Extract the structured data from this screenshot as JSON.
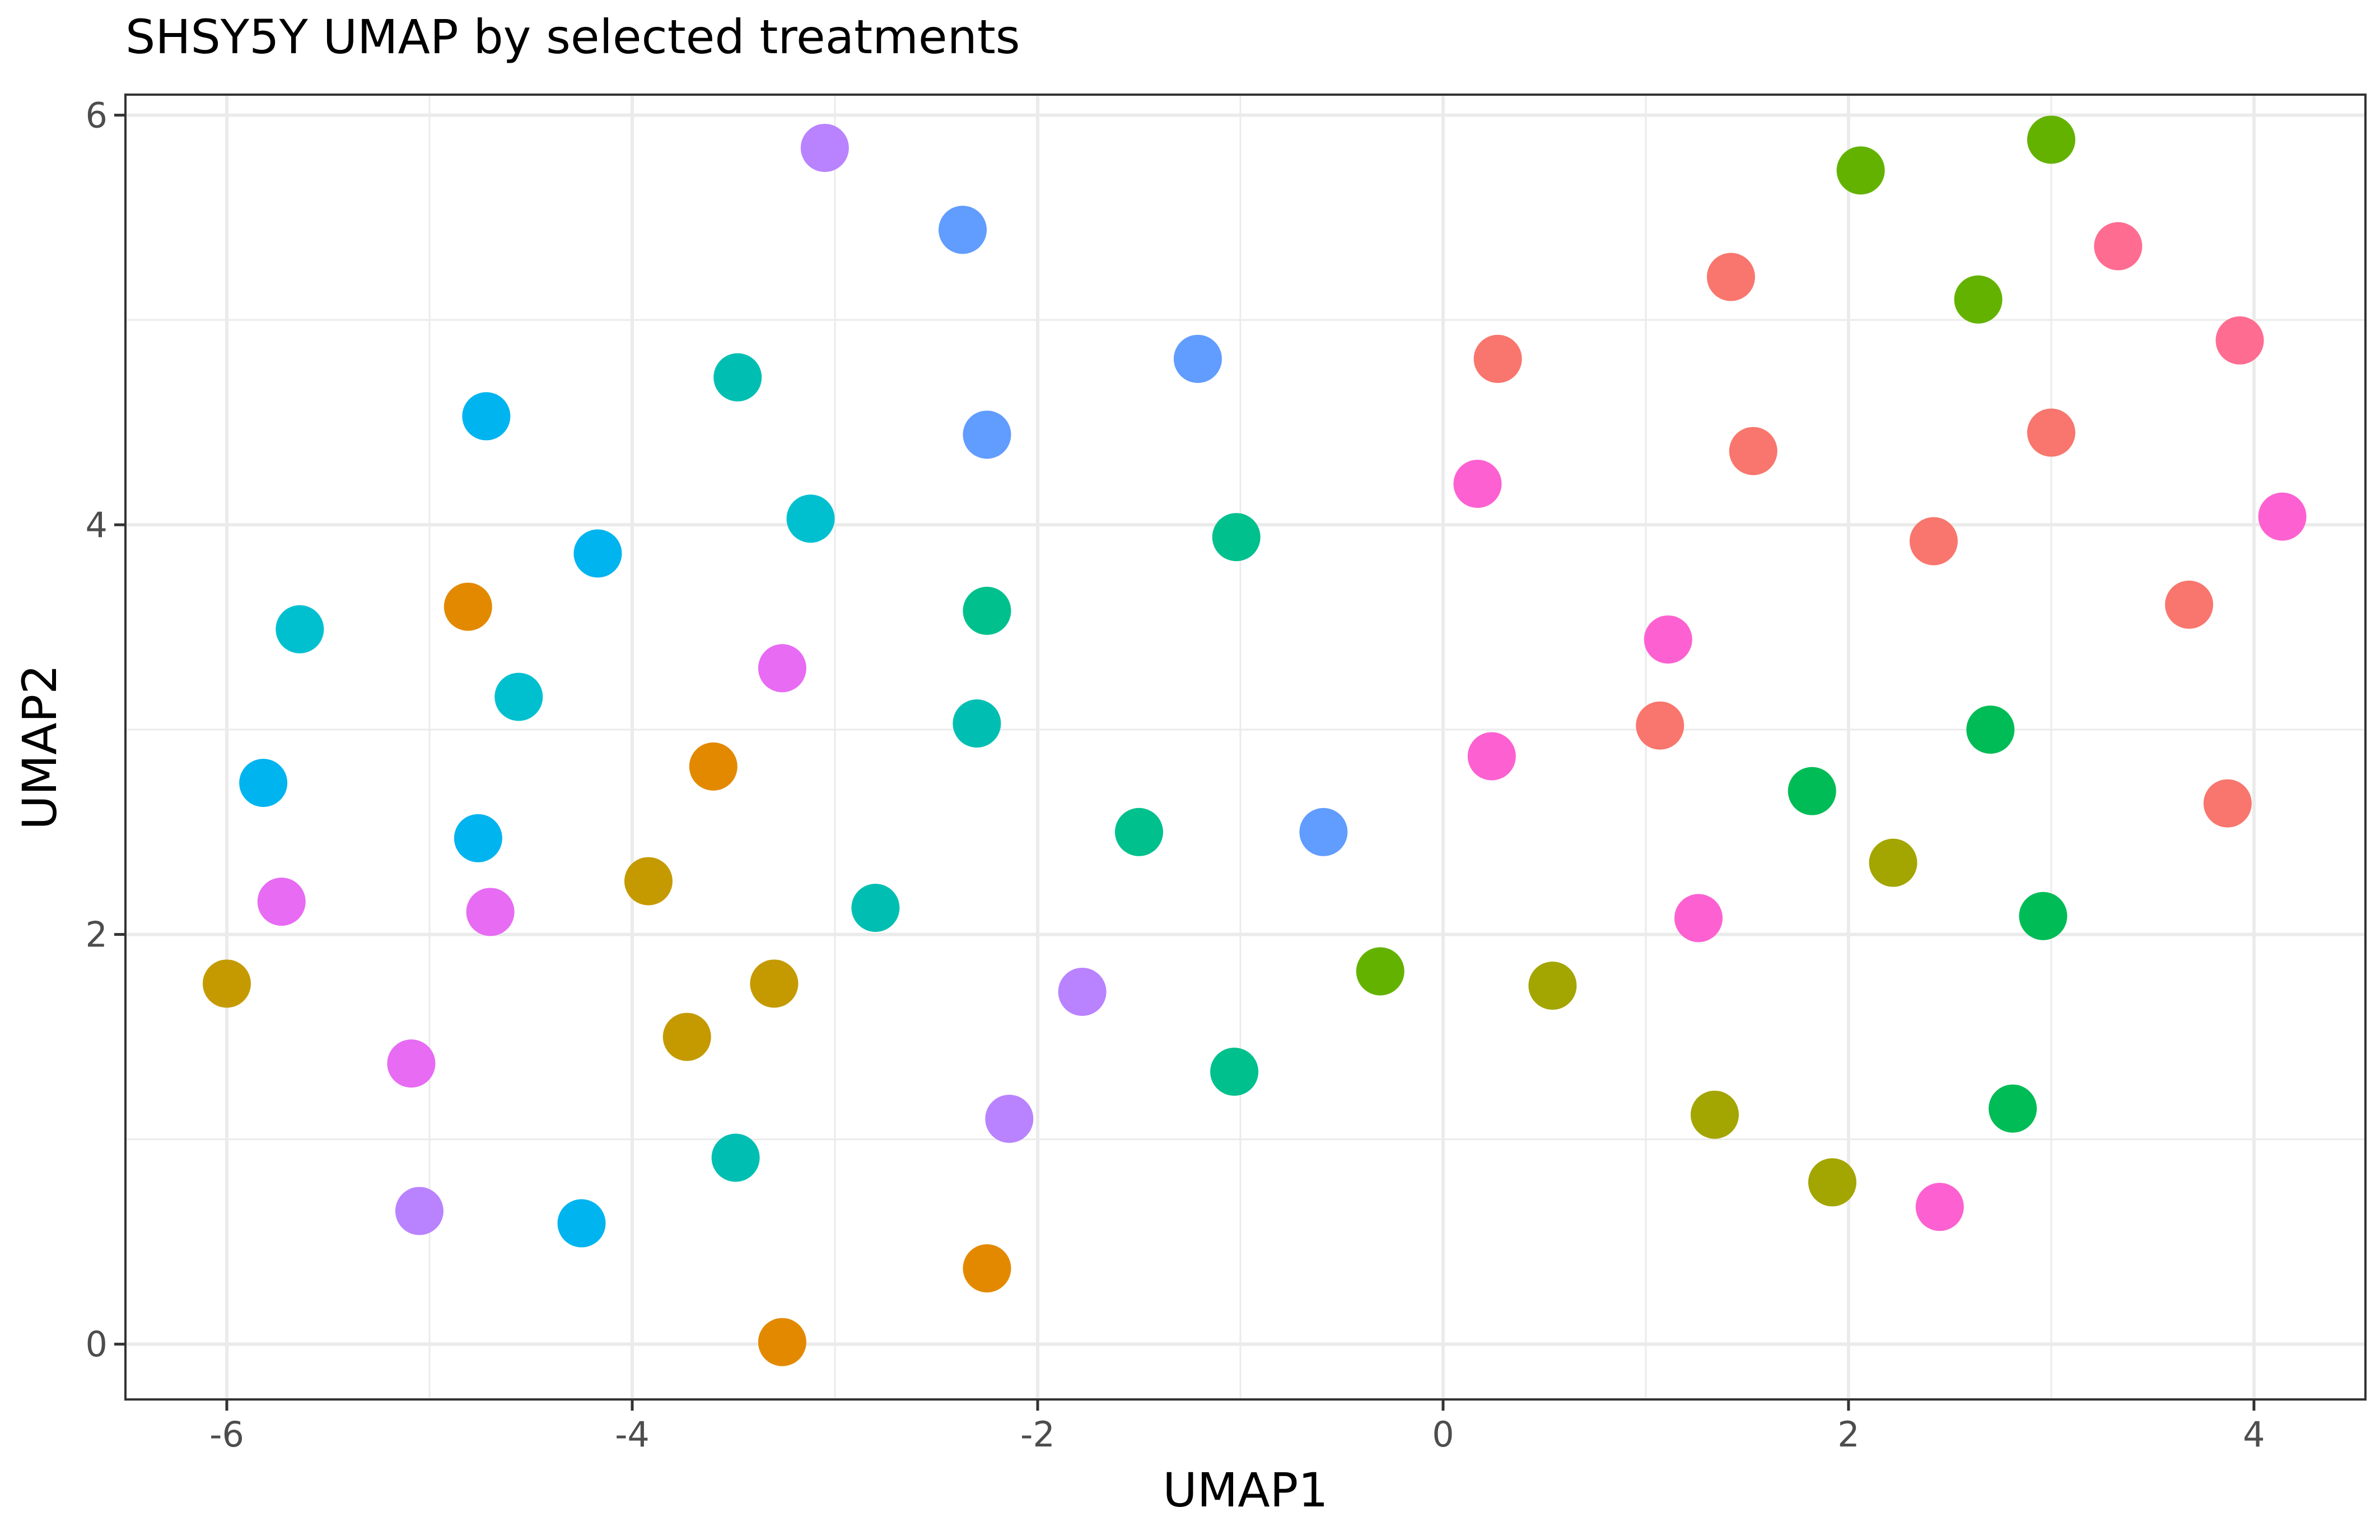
{
  "chart_data": {
    "type": "scatter",
    "title": "SHSY5Y UMAP by selected treatments",
    "xlabel": "UMAP1",
    "ylabel": "UMAP2",
    "xlim": [
      -6.5,
      4.55
    ],
    "ylim": [
      -0.27,
      6.1
    ],
    "x_ticks": [
      -6,
      -4,
      -2,
      0,
      2,
      4
    ],
    "x_tick_labels": [
      "-6",
      "-4",
      "-2",
      "0",
      "2",
      "4"
    ],
    "y_ticks": [
      0,
      2,
      4,
      6
    ],
    "y_tick_labels": [
      "0",
      "2",
      "4",
      "6"
    ],
    "grid": true,
    "legend": "none",
    "points": [
      {
        "x": -3.05,
        "y": 5.84,
        "color": "#B983FF"
      },
      {
        "x": -5.05,
        "y": 0.65,
        "color": "#B983FF"
      },
      {
        "x": -1.78,
        "y": 1.72,
        "color": "#B983FF"
      },
      {
        "x": -2.14,
        "y": 1.1,
        "color": "#B983FF"
      },
      {
        "x": -2.37,
        "y": 5.44,
        "color": "#619CFF"
      },
      {
        "x": -1.21,
        "y": 4.81,
        "color": "#619CFF"
      },
      {
        "x": -2.25,
        "y": 4.44,
        "color": "#619CFF"
      },
      {
        "x": -0.59,
        "y": 2.5,
        "color": "#619CFF"
      },
      {
        "x": -4.72,
        "y": 4.53,
        "color": "#00B4EF"
      },
      {
        "x": -4.17,
        "y": 3.86,
        "color": "#00B4EF"
      },
      {
        "x": -5.82,
        "y": 2.74,
        "color": "#00B4EF"
      },
      {
        "x": -4.76,
        "y": 2.47,
        "color": "#00B4EF"
      },
      {
        "x": -4.25,
        "y": 0.59,
        "color": "#00B4EF"
      },
      {
        "x": -5.64,
        "y": 3.49,
        "color": "#00C0D0"
      },
      {
        "x": -4.56,
        "y": 3.16,
        "color": "#00C0D0"
      },
      {
        "x": -3.12,
        "y": 4.03,
        "color": "#00C0D0"
      },
      {
        "x": -3.48,
        "y": 4.72,
        "color": "#00BFB2"
      },
      {
        "x": -2.3,
        "y": 3.03,
        "color": "#00BFB2"
      },
      {
        "x": -2.8,
        "y": 2.13,
        "color": "#00BFB2"
      },
      {
        "x": -3.49,
        "y": 0.91,
        "color": "#00BFB2"
      },
      {
        "x": -2.25,
        "y": 3.58,
        "color": "#00C08D"
      },
      {
        "x": -1.02,
        "y": 3.94,
        "color": "#00C08D"
      },
      {
        "x": -1.5,
        "y": 2.5,
        "color": "#00C08D"
      },
      {
        "x": -1.03,
        "y": 1.33,
        "color": "#00C08D"
      },
      {
        "x": 2.7,
        "y": 3.0,
        "color": "#00BC56"
      },
      {
        "x": 1.82,
        "y": 2.7,
        "color": "#00BC56"
      },
      {
        "x": 2.96,
        "y": 2.09,
        "color": "#00BC56"
      },
      {
        "x": 2.81,
        "y": 1.15,
        "color": "#00BC56"
      },
      {
        "x": 3.0,
        "y": 5.88,
        "color": "#64B200"
      },
      {
        "x": 2.06,
        "y": 5.73,
        "color": "#64B200"
      },
      {
        "x": 2.64,
        "y": 5.1,
        "color": "#64B200"
      },
      {
        "x": -0.31,
        "y": 1.82,
        "color": "#64B200"
      },
      {
        "x": 0.54,
        "y": 1.75,
        "color": "#A3A500"
      },
      {
        "x": 2.22,
        "y": 2.35,
        "color": "#A3A500"
      },
      {
        "x": 1.34,
        "y": 1.12,
        "color": "#A3A500"
      },
      {
        "x": 1.92,
        "y": 0.79,
        "color": "#A3A500"
      },
      {
        "x": -6.0,
        "y": 1.76,
        "color": "#C49A00"
      },
      {
        "x": -3.92,
        "y": 2.26,
        "color": "#C49A00"
      },
      {
        "x": -3.3,
        "y": 1.76,
        "color": "#C49A00"
      },
      {
        "x": -3.73,
        "y": 1.5,
        "color": "#C49A00"
      },
      {
        "x": -4.81,
        "y": 3.6,
        "color": "#E38900"
      },
      {
        "x": -3.6,
        "y": 2.82,
        "color": "#E38900"
      },
      {
        "x": -2.25,
        "y": 0.37,
        "color": "#E38900"
      },
      {
        "x": -3.26,
        "y": 0.01,
        "color": "#E38900"
      },
      {
        "x": -3.26,
        "y": 3.3,
        "color": "#E76BF3"
      },
      {
        "x": -5.73,
        "y": 2.16,
        "color": "#E76BF3"
      },
      {
        "x": -4.7,
        "y": 2.11,
        "color": "#E76BF3"
      },
      {
        "x": -5.09,
        "y": 1.37,
        "color": "#E76BF3"
      },
      {
        "x": 0.17,
        "y": 4.2,
        "color": "#FD61D1"
      },
      {
        "x": 4.14,
        "y": 4.04,
        "color": "#FD61D1"
      },
      {
        "x": 1.11,
        "y": 3.44,
        "color": "#FD61D1"
      },
      {
        "x": 0.24,
        "y": 2.87,
        "color": "#FD61D1"
      },
      {
        "x": 1.26,
        "y": 2.08,
        "color": "#FD61D1"
      },
      {
        "x": 2.45,
        "y": 0.67,
        "color": "#FD61D1"
      },
      {
        "x": 3.33,
        "y": 5.36,
        "color": "#FF6C91"
      },
      {
        "x": 3.93,
        "y": 4.9,
        "color": "#FF6C91"
      },
      {
        "x": 1.42,
        "y": 5.21,
        "color": "#F8766D"
      },
      {
        "x": 0.27,
        "y": 4.81,
        "color": "#F8766D"
      },
      {
        "x": 1.53,
        "y": 4.36,
        "color": "#F8766D"
      },
      {
        "x": 3.0,
        "y": 4.45,
        "color": "#F8766D"
      },
      {
        "x": 2.42,
        "y": 3.92,
        "color": "#F8766D"
      },
      {
        "x": 3.68,
        "y": 3.61,
        "color": "#F8766D"
      },
      {
        "x": 1.07,
        "y": 3.02,
        "color": "#F8766D"
      },
      {
        "x": 3.87,
        "y": 2.64,
        "color": "#F8766D"
      }
    ]
  }
}
